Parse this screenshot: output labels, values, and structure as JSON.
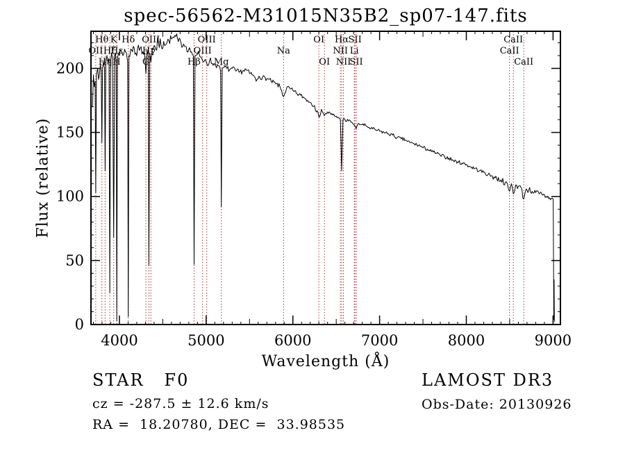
{
  "header": {
    "title": "spec-56562-M31015N35B2_sp07-147.fits"
  },
  "footer": {
    "class_label": "STAR   F0",
    "cz": "cz = -287.5 ± 12.6 km/s",
    "ra_dec": "RA =  18.20780, DEC =  33.98535",
    "survey": "LAMOST DR3",
    "obs_date": "Obs-Date: 20130926"
  },
  "chart_data": {
    "type": "line",
    "title": "spec-56562-M31015N35B2_sp07-147.fits",
    "xlabel": "Wavelength (Å)",
    "ylabel": "Flux (relative)",
    "xlim": [
      3672,
      9085
    ],
    "ylim": [
      0,
      229
    ],
    "x_ticks": [
      4000,
      5000,
      6000,
      7000,
      8000,
      9000
    ],
    "y_ticks": [
      0,
      50,
      100,
      150,
      200
    ],
    "grid": false,
    "trace_color": "#000000",
    "line_marker_color": "#aa3232",
    "spectral_lines": [
      {
        "label": "OII",
        "wavelength": 3727,
        "row": 2
      },
      {
        "label": "Hθ",
        "wavelength": 3798,
        "row": 1
      },
      {
        "label": "Hη",
        "wavelength": 3835,
        "row": 3
      },
      {
        "label": "Hζ",
        "wavelength": 3889,
        "row": 2
      },
      {
        "label": "K",
        "wavelength": 3934,
        "row": 1
      },
      {
        "label": "H",
        "wavelength": 3969,
        "row": 3
      },
      {
        "label": "Hε",
        "wavelength": 3970,
        "row": 2
      },
      {
        "label": "Hδ",
        "wavelength": 4102,
        "row": 1
      },
      {
        "label": "G",
        "wavelength": 4305,
        "row": 3
      },
      {
        "label": "Hγ",
        "wavelength": 4340,
        "row": 2
      },
      {
        "label": "OIII",
        "wavelength": 4363,
        "row": 1
      },
      {
        "label": "Hβ",
        "wavelength": 4861,
        "row": 3
      },
      {
        "label": "OIII",
        "wavelength": 4959,
        "row": 2
      },
      {
        "label": "OIII",
        "wavelength": 5007,
        "row": 1
      },
      {
        "label": "Mg",
        "wavelength": 5175,
        "row": 3
      },
      {
        "label": "Na",
        "wavelength": 5893,
        "row": 2
      },
      {
        "label": "OI",
        "wavelength": 6300,
        "row": 1
      },
      {
        "label": "OI",
        "wavelength": 6364,
        "row": 3
      },
      {
        "label": "NII",
        "wavelength": 6548,
        "row": 2
      },
      {
        "label": "Hα",
        "wavelength": 6563,
        "row": 1
      },
      {
        "label": "NII",
        "wavelength": 6583,
        "row": 3
      },
      {
        "label": "Li",
        "wavelength": 6708,
        "row": 2
      },
      {
        "label": "SII",
        "wavelength": 6716,
        "row": 1
      },
      {
        "label": "SII",
        "wavelength": 6731,
        "row": 3
      },
      {
        "label": "CaII",
        "wavelength": 8498,
        "row": 2
      },
      {
        "label": "CaII",
        "wavelength": 8542,
        "row": 1
      },
      {
        "label": "CaII",
        "wavelength": 8662,
        "row": 3
      }
    ],
    "spectrum": [
      [
        3690,
        170
      ],
      [
        3700,
        195
      ],
      [
        3720,
        190
      ],
      [
        3727,
        103
      ],
      [
        3735,
        195
      ],
      [
        3750,
        200
      ],
      [
        3770,
        195
      ],
      [
        3790,
        198
      ],
      [
        3798,
        142
      ],
      [
        3806,
        200
      ],
      [
        3815,
        205
      ],
      [
        3828,
        200
      ],
      [
        3835,
        120
      ],
      [
        3843,
        205
      ],
      [
        3855,
        210
      ],
      [
        3870,
        205
      ],
      [
        3880,
        208
      ],
      [
        3889,
        25
      ],
      [
        3898,
        205
      ],
      [
        3910,
        212
      ],
      [
        3920,
        208
      ],
      [
        3934,
        68
      ],
      [
        3946,
        210
      ],
      [
        3955,
        212
      ],
      [
        3963,
        205
      ],
      [
        3970,
        3
      ],
      [
        3978,
        208
      ],
      [
        3990,
        212
      ],
      [
        4000,
        210
      ],
      [
        4020,
        214
      ],
      [
        4040,
        210
      ],
      [
        4060,
        215
      ],
      [
        4080,
        212
      ],
      [
        4095,
        205
      ],
      [
        4102,
        6
      ],
      [
        4110,
        210
      ],
      [
        4130,
        215
      ],
      [
        4150,
        213
      ],
      [
        4170,
        216
      ],
      [
        4190,
        212
      ],
      [
        4210,
        216
      ],
      [
        4230,
        214
      ],
      [
        4250,
        217
      ],
      [
        4270,
        213
      ],
      [
        4290,
        212
      ],
      [
        4305,
        196
      ],
      [
        4320,
        214
      ],
      [
        4332,
        210
      ],
      [
        4340,
        46
      ],
      [
        4350,
        212
      ],
      [
        4363,
        205
      ],
      [
        4380,
        216
      ],
      [
        4400,
        218
      ],
      [
        4420,
        215
      ],
      [
        4450,
        220
      ],
      [
        4480,
        218
      ],
      [
        4510,
        221
      ],
      [
        4540,
        219
      ],
      [
        4570,
        222
      ],
      [
        4600,
        223
      ],
      [
        4630,
        224
      ],
      [
        4650,
        225
      ],
      [
        4680,
        221
      ],
      [
        4710,
        220
      ],
      [
        4740,
        219
      ],
      [
        4770,
        217
      ],
      [
        4800,
        215
      ],
      [
        4830,
        213
      ],
      [
        4852,
        210
      ],
      [
        4861,
        47
      ],
      [
        4872,
        210
      ],
      [
        4900,
        211
      ],
      [
        4930,
        209
      ],
      [
        4959,
        206
      ],
      [
        4990,
        207
      ],
      [
        5007,
        204
      ],
      [
        5040,
        206
      ],
      [
        5070,
        204
      ],
      [
        5100,
        203
      ],
      [
        5140,
        202
      ],
      [
        5167,
        198
      ],
      [
        5175,
        92
      ],
      [
        5185,
        200
      ],
      [
        5210,
        201
      ],
      [
        5240,
        200
      ],
      [
        5270,
        199
      ],
      [
        5300,
        200
      ],
      [
        5340,
        198
      ],
      [
        5380,
        197
      ],
      [
        5420,
        198
      ],
      [
        5460,
        199
      ],
      [
        5500,
        196
      ],
      [
        5540,
        195
      ],
      [
        5577,
        190
      ],
      [
        5610,
        194
      ],
      [
        5650,
        193
      ],
      [
        5700,
        192
      ],
      [
        5750,
        190
      ],
      [
        5800,
        188
      ],
      [
        5850,
        186
      ],
      [
        5893,
        178
      ],
      [
        5930,
        185
      ],
      [
        5970,
        184
      ],
      [
        6010,
        182
      ],
      [
        6050,
        180
      ],
      [
        6090,
        179
      ],
      [
        6130,
        177
      ],
      [
        6170,
        175
      ],
      [
        6210,
        173
      ],
      [
        6250,
        171
      ],
      [
        6300,
        162
      ],
      [
        6330,
        168
      ],
      [
        6364,
        163
      ],
      [
        6400,
        166
      ],
      [
        6440,
        164
      ],
      [
        6480,
        163
      ],
      [
        6520,
        162
      ],
      [
        6548,
        160
      ],
      [
        6563,
        120
      ],
      [
        6578,
        160
      ],
      [
        6600,
        160
      ],
      [
        6640,
        159
      ],
      [
        6680,
        158
      ],
      [
        6708,
        156
      ],
      [
        6716,
        155
      ],
      [
        6731,
        153
      ],
      [
        6760,
        157
      ],
      [
        6800,
        156
      ],
      [
        6850,
        155
      ],
      [
        6900,
        153
      ],
      [
        6950,
        152
      ],
      [
        7000,
        151
      ],
      [
        7050,
        150
      ],
      [
        7100,
        149
      ],
      [
        7150,
        148
      ],
      [
        7200,
        146
      ],
      [
        7250,
        145
      ],
      [
        7300,
        144
      ],
      [
        7350,
        142
      ],
      [
        7400,
        141
      ],
      [
        7450,
        140
      ],
      [
        7500,
        138
      ],
      [
        7550,
        137
      ],
      [
        7600,
        135
      ],
      [
        7650,
        134
      ],
      [
        7700,
        132
      ],
      [
        7750,
        131
      ],
      [
        7800,
        130
      ],
      [
        7850,
        128
      ],
      [
        7900,
        127
      ],
      [
        7950,
        126
      ],
      [
        8000,
        125
      ],
      [
        8050,
        123
      ],
      [
        8100,
        122
      ],
      [
        8150,
        120
      ],
      [
        8200,
        119
      ],
      [
        8250,
        117
      ],
      [
        8300,
        116
      ],
      [
        8350,
        114
      ],
      [
        8400,
        113
      ],
      [
        8450,
        111
      ],
      [
        8498,
        104
      ],
      [
        8520,
        110
      ],
      [
        8542,
        102
      ],
      [
        8570,
        109
      ],
      [
        8600,
        108
      ],
      [
        8630,
        107
      ],
      [
        8662,
        98
      ],
      [
        8690,
        106
      ],
      [
        8720,
        105
      ],
      [
        8760,
        104
      ],
      [
        8800,
        103
      ],
      [
        8840,
        102
      ],
      [
        8880,
        101
      ],
      [
        8920,
        100
      ],
      [
        8960,
        99
      ],
      [
        9000,
        98
      ],
      [
        9002,
        97
      ],
      [
        9006,
        50
      ],
      [
        9009,
        4
      ],
      [
        9012,
        35
      ],
      [
        9015,
        2
      ]
    ]
  }
}
